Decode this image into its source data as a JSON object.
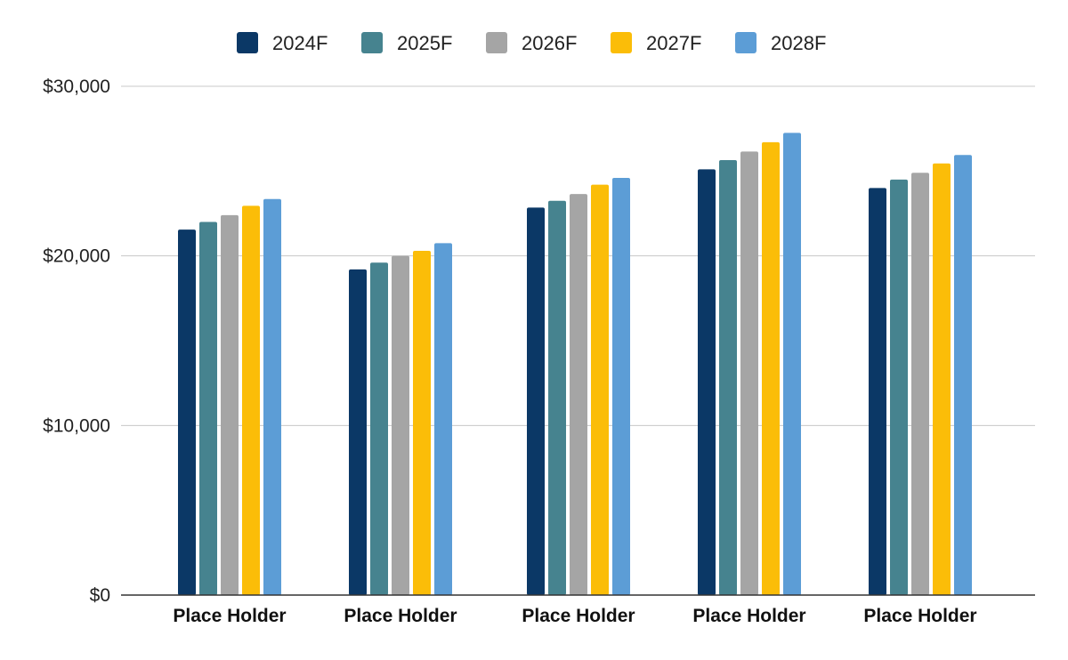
{
  "chart_data": {
    "type": "bar",
    "title": "",
    "xlabel": "",
    "ylabel": "",
    "categories": [
      "Place Holder",
      "Place Holder",
      "Place Holder",
      "Place Holder",
      "Place Holder"
    ],
    "series": [
      {
        "name": "2024F",
        "color": "#0b3866",
        "values": [
          21550,
          19200,
          22850,
          25100,
          24000
        ]
      },
      {
        "name": "2025F",
        "color": "#46838f",
        "values": [
          22000,
          19600,
          23250,
          25650,
          24500
        ]
      },
      {
        "name": "2026F",
        "color": "#a5a5a5",
        "values": [
          22400,
          20000,
          23650,
          26150,
          24900
        ]
      },
      {
        "name": "2027F",
        "color": "#fbbd08",
        "values": [
          22950,
          20300,
          24200,
          26700,
          25450
        ]
      },
      {
        "name": "2028F",
        "color": "#5c9dd6",
        "values": [
          23350,
          20750,
          24600,
          27250,
          25950
        ]
      }
    ],
    "ylim": [
      0,
      30000
    ],
    "yticks": [
      0,
      10000,
      20000,
      30000
    ],
    "ytick_labels": [
      "$0",
      "$10,000",
      "$20,000",
      "$30,000"
    ],
    "grid": true,
    "legend_position": "top-center"
  }
}
